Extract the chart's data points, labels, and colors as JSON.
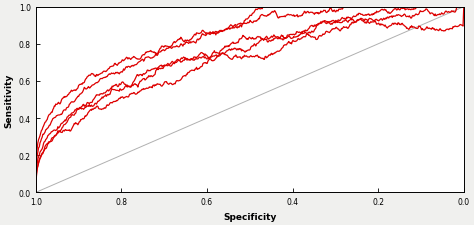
{
  "title": "",
  "xlabel": "Specificity",
  "ylabel": "Sensitivity",
  "xlim": [
    1.0,
    0.0
  ],
  "ylim": [
    0.0,
    1.0
  ],
  "xticks": [
    1.0,
    0.8,
    0.6,
    0.4,
    0.2,
    0.0
  ],
  "yticks": [
    0.0,
    0.2,
    0.4,
    0.6,
    0.8,
    1.0
  ],
  "line_color": "#dd0000",
  "diag_color": "#b0b0b0",
  "background_color": "#f0f0ee",
  "curve_linewidth": 0.9,
  "diag_linewidth": 0.7,
  "curves": [
    {
      "auc": 0.92,
      "seed": 1,
      "power": 0.28
    },
    {
      "auc": 0.9,
      "seed": 2,
      "power": 0.32
    },
    {
      "auc": 0.88,
      "seed": 3,
      "power": 0.36
    },
    {
      "auc": 0.93,
      "seed": 4,
      "power": 0.25
    },
    {
      "auc": 0.87,
      "seed": 5,
      "power": 0.38
    }
  ]
}
